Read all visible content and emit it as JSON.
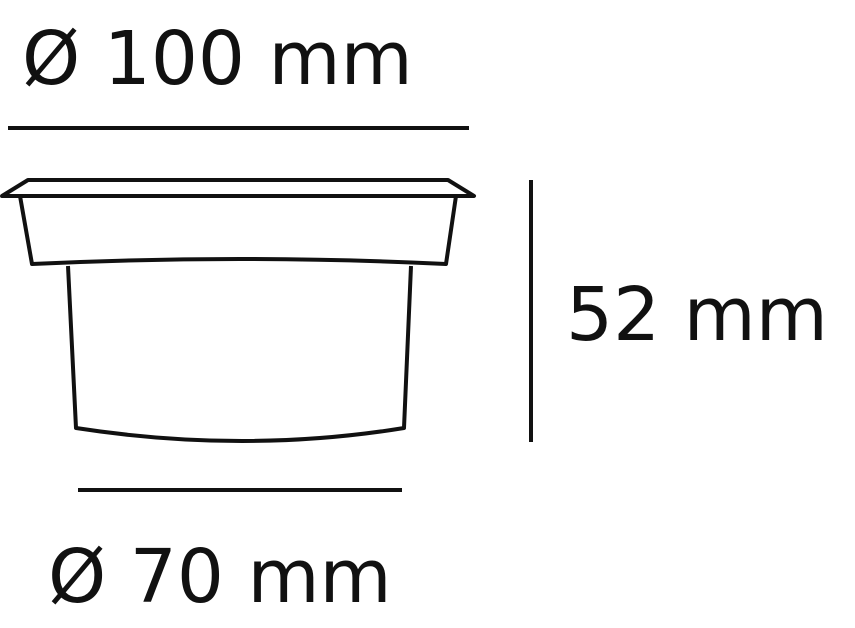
{
  "dimensions": {
    "top_diameter": "Ø 100 mm",
    "height": "52 mm",
    "bottom_diameter": "Ø 70 mm"
  },
  "colors": {
    "ink": "#111111",
    "background": "#ffffff"
  }
}
